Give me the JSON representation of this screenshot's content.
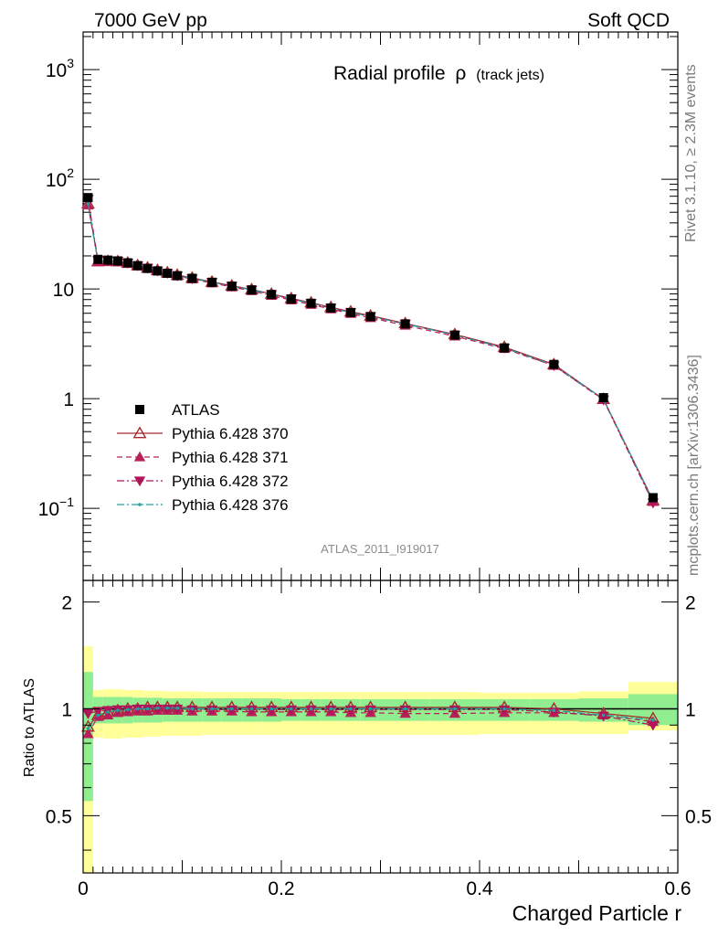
{
  "header": {
    "left": "7000 GeV pp",
    "right": "Soft QCD"
  },
  "side_labels": {
    "rivet": "Rivet 3.1.10, ≥ 2.3M events",
    "mcplots": "mcplots.cern.ch [arXiv:1306.3436]"
  },
  "chart_data": [
    {
      "type": "scatter",
      "title": "Radial profile",
      "title_symbol": "ρ",
      "title_suffix": "(track jets)",
      "analysis_label": "ATLAS_2011_I919017",
      "xlabel": "",
      "ylabel": "",
      "xlim": [
        0,
        0.6
      ],
      "ylim": [
        0.022,
        2200
      ],
      "yscale": "log",
      "legend_position": "lower-left",
      "yticklabels": [
        {
          "value": 0.1,
          "base": "10",
          "exp": "−1"
        },
        {
          "value": 1,
          "base": "1",
          "exp": ""
        },
        {
          "value": 10,
          "base": "10",
          "exp": ""
        },
        {
          "value": 100,
          "base": "10",
          "exp": "2"
        },
        {
          "value": 1000,
          "base": "10",
          "exp": "3"
        }
      ],
      "x": [
        0.005,
        0.015,
        0.025,
        0.035,
        0.045,
        0.055,
        0.065,
        0.075,
        0.085,
        0.095,
        0.11,
        0.13,
        0.15,
        0.17,
        0.19,
        0.21,
        0.23,
        0.25,
        0.27,
        0.29,
        0.325,
        0.375,
        0.425,
        0.475,
        0.525,
        0.575
      ],
      "series": [
        {
          "name": "ATLAS",
          "marker": "filled-square",
          "color": "#000000",
          "line": "none",
          "values": [
            68,
            18.6,
            18.3,
            18.0,
            17.3,
            16.3,
            15.4,
            14.6,
            13.9,
            13.2,
            12.5,
            11.5,
            10.6,
            9.8,
            8.9,
            8.1,
            7.4,
            6.7,
            6.1,
            5.6,
            4.8,
            3.8,
            2.9,
            2.05,
            1.02,
            0.125
          ]
        },
        {
          "name": "Pythia 6.428 370",
          "marker": "open-triangle-up",
          "color": "#a52a2a",
          "line": "solid",
          "values": [
            60,
            17.8,
            17.9,
            17.8,
            17.3,
            16.4,
            15.6,
            14.8,
            14.1,
            13.4,
            12.6,
            11.6,
            10.7,
            9.9,
            9.0,
            8.2,
            7.5,
            6.8,
            6.2,
            5.7,
            4.85,
            3.85,
            2.95,
            2.05,
            0.99,
            0.118
          ]
        },
        {
          "name": "Pythia 6.428 371",
          "marker": "filled-triangle-up",
          "color": "#b8205a",
          "line": "dashed",
          "values": [
            58,
            17.6,
            17.7,
            17.6,
            17.0,
            16.1,
            15.3,
            14.5,
            13.8,
            13.1,
            12.3,
            11.3,
            10.4,
            9.6,
            8.7,
            7.9,
            7.2,
            6.55,
            5.95,
            5.45,
            4.65,
            3.7,
            2.85,
            2.0,
            0.98,
            0.115
          ]
        },
        {
          "name": "Pythia 6.428 372",
          "marker": "filled-triangle-down",
          "color": "#b0155a",
          "line": "dashdot",
          "values": [
            66,
            18.3,
            18.1,
            17.9,
            17.2,
            16.3,
            15.5,
            14.6,
            13.9,
            13.2,
            12.4,
            11.5,
            10.6,
            9.8,
            8.9,
            8.1,
            7.4,
            6.7,
            6.1,
            5.6,
            4.8,
            3.8,
            2.9,
            2.0,
            0.975,
            0.112
          ]
        },
        {
          "name": "Pythia 6.428 376",
          "marker": "small-dot",
          "color": "#20a0a0",
          "line": "dashdot",
          "values": [
            60,
            17.9,
            17.9,
            17.8,
            17.2,
            16.3,
            15.5,
            14.7,
            14.0,
            13.3,
            12.5,
            11.5,
            10.6,
            9.8,
            8.9,
            8.1,
            7.4,
            6.7,
            6.1,
            5.6,
            4.8,
            3.8,
            2.9,
            2.02,
            0.99,
            0.117
          ]
        }
      ]
    },
    {
      "type": "line",
      "xlabel": "Charged Particle r",
      "ylabel": "Ratio to ATLAS",
      "xlim": [
        0,
        0.6
      ],
      "ylim": [
        0.345,
        2.3
      ],
      "yscale": "log",
      "xticklabels": [
        "0",
        "0.2",
        "0.4",
        "0.6"
      ],
      "yticklabels": [
        "0.5",
        "1",
        "2"
      ],
      "reference_line": 1,
      "bins": [
        [
          0,
          0.01
        ],
        [
          0.01,
          0.02
        ],
        [
          0.02,
          0.03
        ],
        [
          0.03,
          0.04
        ],
        [
          0.04,
          0.05
        ],
        [
          0.05,
          0.06
        ],
        [
          0.06,
          0.07
        ],
        [
          0.07,
          0.08
        ],
        [
          0.08,
          0.09
        ],
        [
          0.09,
          0.1
        ],
        [
          0.1,
          0.12
        ],
        [
          0.12,
          0.14
        ],
        [
          0.14,
          0.16
        ],
        [
          0.16,
          0.18
        ],
        [
          0.18,
          0.2
        ],
        [
          0.2,
          0.22
        ],
        [
          0.22,
          0.24
        ],
        [
          0.24,
          0.26
        ],
        [
          0.26,
          0.28
        ],
        [
          0.28,
          0.3
        ],
        [
          0.3,
          0.35
        ],
        [
          0.35,
          0.4
        ],
        [
          0.4,
          0.45
        ],
        [
          0.45,
          0.5
        ],
        [
          0.5,
          0.55
        ],
        [
          0.55,
          0.6
        ]
      ],
      "band_green": [
        [
          0.55,
          1.27
        ],
        [
          0.91,
          1.08
        ],
        [
          0.91,
          1.08
        ],
        [
          0.91,
          1.08
        ],
        [
          0.91,
          1.08
        ],
        [
          0.915,
          1.075
        ],
        [
          0.915,
          1.075
        ],
        [
          0.915,
          1.075
        ],
        [
          0.92,
          1.07
        ],
        [
          0.92,
          1.07
        ],
        [
          0.92,
          1.07
        ],
        [
          0.92,
          1.07
        ],
        [
          0.92,
          1.07
        ],
        [
          0.92,
          1.07
        ],
        [
          0.92,
          1.07
        ],
        [
          0.925,
          1.065
        ],
        [
          0.925,
          1.065
        ],
        [
          0.925,
          1.065
        ],
        [
          0.925,
          1.065
        ],
        [
          0.925,
          1.065
        ],
        [
          0.925,
          1.065
        ],
        [
          0.925,
          1.065
        ],
        [
          0.925,
          1.065
        ],
        [
          0.925,
          1.065
        ],
        [
          0.92,
          1.07
        ],
        [
          0.9,
          1.1
        ]
      ],
      "band_yellow": [
        [
          0.345,
          1.5
        ],
        [
          0.83,
          1.13
        ],
        [
          0.825,
          1.135
        ],
        [
          0.825,
          1.135
        ],
        [
          0.83,
          1.13
        ],
        [
          0.83,
          1.13
        ],
        [
          0.835,
          1.125
        ],
        [
          0.835,
          1.125
        ],
        [
          0.84,
          1.12
        ],
        [
          0.84,
          1.12
        ],
        [
          0.84,
          1.12
        ],
        [
          0.845,
          1.115
        ],
        [
          0.845,
          1.115
        ],
        [
          0.845,
          1.115
        ],
        [
          0.845,
          1.115
        ],
        [
          0.845,
          1.115
        ],
        [
          0.845,
          1.115
        ],
        [
          0.845,
          1.115
        ],
        [
          0.845,
          1.115
        ],
        [
          0.845,
          1.115
        ],
        [
          0.845,
          1.115
        ],
        [
          0.845,
          1.115
        ],
        [
          0.85,
          1.11
        ],
        [
          0.85,
          1.11
        ],
        [
          0.85,
          1.12
        ],
        [
          0.87,
          1.19
        ]
      ],
      "series": [
        {
          "name": "Pythia 6.428 370",
          "marker": "open-triangle-up",
          "color": "#a52a2a",
          "line": "solid",
          "values": [
            0.89,
            0.96,
            0.98,
            0.99,
            1.0,
            1.0,
            1.01,
            1.01,
            1.01,
            1.01,
            1.01,
            1.01,
            1.01,
            1.01,
            1.01,
            1.01,
            1.01,
            1.01,
            1.01,
            1.01,
            1.01,
            1.01,
            1.01,
            1.0,
            0.97,
            0.94
          ]
        },
        {
          "name": "Pythia 6.428 371",
          "marker": "filled-triangle-up",
          "color": "#b8205a",
          "line": "dashed",
          "values": [
            0.85,
            0.95,
            0.96,
            0.975,
            0.98,
            0.985,
            0.985,
            0.99,
            0.99,
            0.99,
            0.985,
            0.985,
            0.985,
            0.98,
            0.98,
            0.98,
            0.98,
            0.98,
            0.975,
            0.975,
            0.97,
            0.97,
            0.975,
            0.975,
            0.96,
            0.92
          ]
        },
        {
          "name": "Pythia 6.428 372",
          "marker": "filled-triangle-down",
          "color": "#b0155a",
          "line": "dashdot",
          "values": [
            0.97,
            0.985,
            0.99,
            0.995,
            0.995,
            1.0,
            1.0,
            1.0,
            1.0,
            1.0,
            0.995,
            0.995,
            0.995,
            0.995,
            0.995,
            0.995,
            0.995,
            0.995,
            0.995,
            0.995,
            0.995,
            0.995,
            0.995,
            0.98,
            0.955,
            0.9
          ]
        },
        {
          "name": "Pythia 6.428 376",
          "marker": "small-dot",
          "color": "#20a0a0",
          "line": "dashdot",
          "values": [
            0.88,
            0.96,
            0.98,
            0.99,
            0.995,
            1.0,
            1.0,
            1.005,
            1.005,
            1.005,
            1.0,
            1.0,
            1.0,
            1.0,
            1.0,
            1.0,
            1.0,
            1.0,
            1.0,
            1.0,
            1.0,
            1.0,
            1.0,
            0.99,
            0.96,
            0.93
          ]
        }
      ]
    }
  ],
  "colors": {
    "band_green": "#90ee90",
    "band_yellow": "#ffff99",
    "frame": "#000000"
  }
}
